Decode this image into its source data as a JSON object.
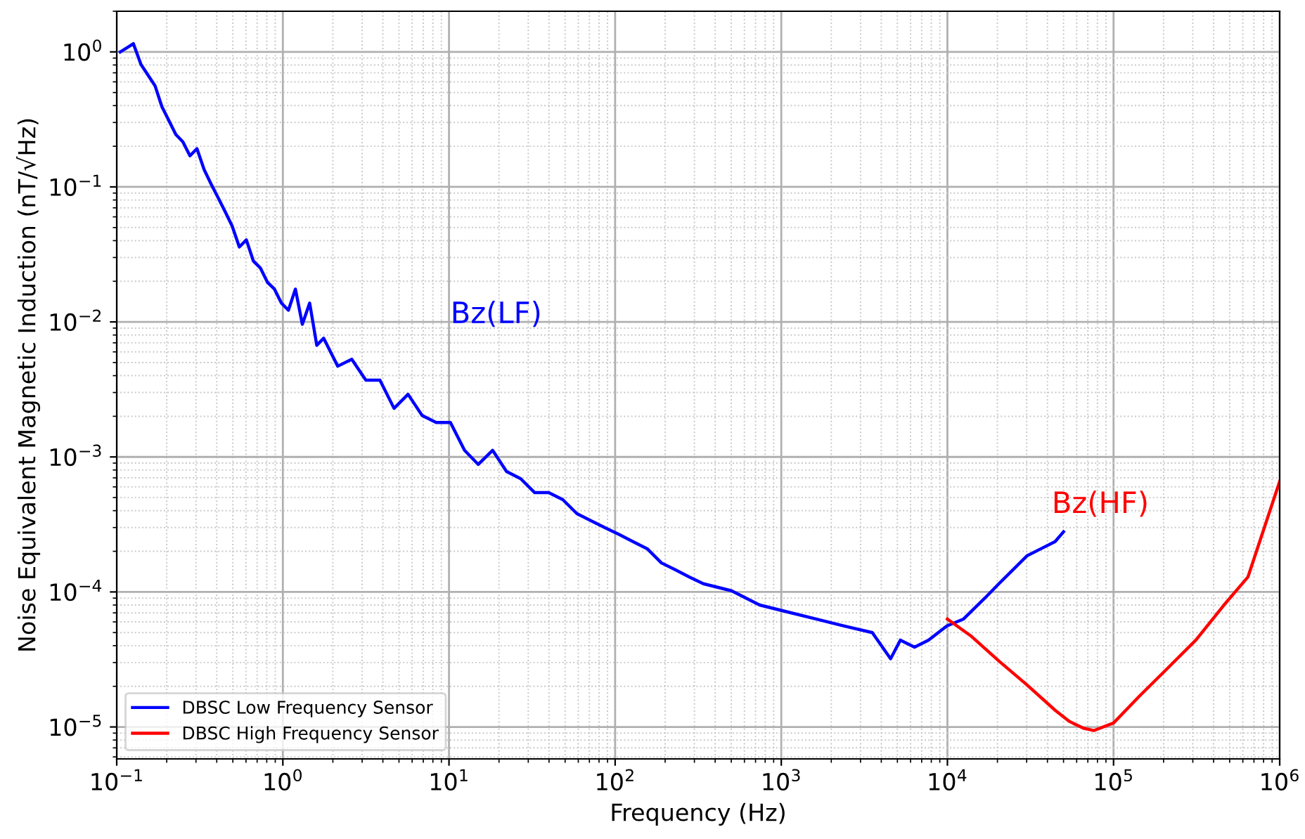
{
  "chart_data": {
    "type": "line",
    "xlabel": "Frequency (Hz)",
    "ylabel": "Noise Equivalent Magnetic Induction (nT/√Hz)",
    "log": "xy",
    "grid": true,
    "legend": "bottom left",
    "xlim": [
      0.1,
      1000000
    ],
    "ylim": [
      5.8e-06,
      2
    ],
    "xticks": [
      {
        "value": 0.1,
        "label": "10$^{−1}$"
      },
      {
        "value": 1,
        "label": "10$^{0}$"
      },
      {
        "value": 10,
        "label": "10$^{1}$"
      },
      {
        "value": 100,
        "label": "10$^{2}$"
      },
      {
        "value": 1000,
        "label": "10$^{3}$"
      },
      {
        "value": 10000,
        "label": "10$^{4}$"
      },
      {
        "value": 100000,
        "label": "10$^{5}$"
      },
      {
        "value": 1000000,
        "label": "10$^{6}$"
      }
    ],
    "yticks": [
      {
        "value": 1e-05,
        "label": "10$^{−5}$"
      },
      {
        "value": 0.0001,
        "label": "10$^{−4}$"
      },
      {
        "value": 0.001,
        "label": "10$^{−3}$"
      },
      {
        "value": 0.01,
        "label": "10$^{−2}$"
      },
      {
        "value": 0.1,
        "label": "10$^{−1}$"
      },
      {
        "value": 1,
        "label": "10$^{0}$"
      }
    ],
    "annotations": [
      "Bz(LF)",
      "Bz(HF)"
    ],
    "series": [
      {
        "name": "DBSC Low Frequency Sensor",
        "color": "#0000ff",
        "x": [
          0.105,
          0.115,
          0.126,
          0.14,
          0.17,
          0.187,
          0.206,
          0.227,
          0.25,
          0.276,
          0.304,
          0.336,
          0.37,
          0.408,
          0.45,
          0.495,
          0.547,
          0.603,
          0.664,
          0.732,
          0.807,
          0.89,
          0.98,
          1.08,
          1.19,
          1.31,
          1.45,
          1.6,
          1.76,
          2.14,
          2.6,
          3.16,
          3.84,
          4.67,
          5.67,
          6.89,
          8.37,
          10.2,
          12.4,
          15.0,
          18.3,
          22.2,
          27.0,
          32.8,
          39.8,
          48.4,
          58.9,
          71.5,
          86.9,
          106,
          128,
          156,
          190,
          230,
          280,
          340,
          502,
          741,
          1096,
          1618,
          2390,
          3530,
          4550,
          5210,
          6340,
          7700,
          9930,
          12500,
          16800,
          20400,
          24800,
          30100,
          36600,
          44500,
          50000
        ],
        "values": [
          1.0,
          1.07,
          1.15,
          0.806,
          0.562,
          0.393,
          0.31,
          0.244,
          0.216,
          0.17,
          0.192,
          0.134,
          0.105,
          0.083,
          0.0653,
          0.0514,
          0.0359,
          0.0405,
          0.0283,
          0.0251,
          0.0197,
          0.0175,
          0.0138,
          0.0122,
          0.0175,
          0.0096,
          0.0138,
          0.00671,
          0.00757,
          0.0047,
          0.00529,
          0.0037,
          0.0037,
          0.00229,
          0.00291,
          0.00203,
          0.0018,
          0.0018,
          0.00112,
          0.00088,
          0.00112,
          0.00078,
          0.00069,
          0.000544,
          0.000544,
          0.000483,
          0.00038,
          0.000337,
          0.000299,
          0.000266,
          0.000236,
          0.000209,
          0.000164,
          0.000146,
          0.000129,
          0.000115,
          0.000102,
          8e-05,
          7.1e-05,
          6.3e-05,
          5.6e-05,
          5e-05,
          3.2e-05,
          4.4e-05,
          3.9e-05,
          4.4e-05,
          5.6e-05,
          6.3e-05,
          9e-05,
          0.000115,
          0.000146,
          0.000185,
          0.000209,
          0.000236,
          0.000279
        ]
      },
      {
        "name": "DBSC High Frequency Sensor",
        "color": "#ff0000",
        "x": [
          10000,
          13800,
          20400,
          30100,
          44500,
          54100,
          65800,
          76000,
          100000,
          143000,
          212000,
          313000,
          462000,
          644000,
          1000000
        ],
        "values": [
          6.3e-05,
          4.74e-05,
          3.08e-05,
          2.05e-05,
          1.33e-05,
          1.1e-05,
          9.8e-06,
          9.4e-06,
          1.07e-05,
          1.69e-05,
          2.73e-05,
          4.4e-05,
          8e-05,
          0.000129,
          0.00066
        ]
      }
    ]
  }
}
